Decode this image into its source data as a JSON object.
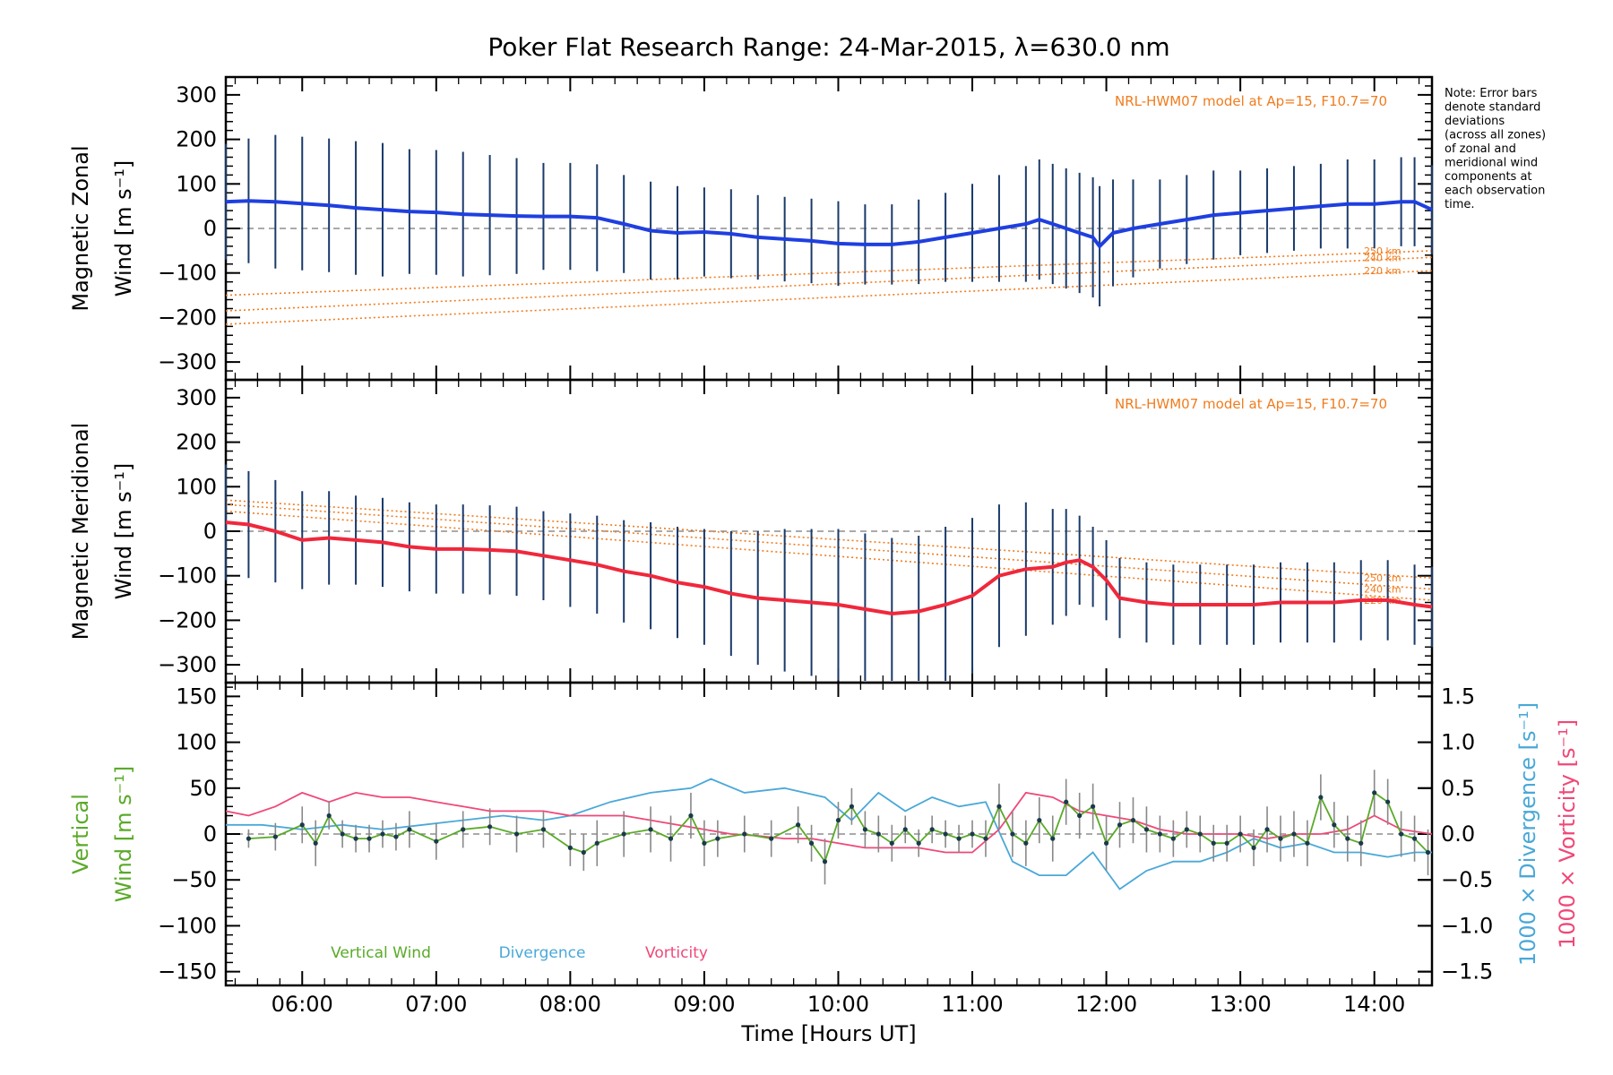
{
  "figure": {
    "title": "Poker Flat Research Range: 24-Mar-2015, λ=630.0 nm",
    "note": [
      "Note: Error bars",
      "denote standard",
      "deviations",
      "(across all zones)",
      "of zonal and",
      "meridional wind",
      "components at",
      "each observation",
      "time."
    ],
    "xlabel": "Time [Hours UT]",
    "xtick_labels": [
      "06:00",
      "07:00",
      "08:00",
      "09:00",
      "10:00",
      "11:00",
      "12:00",
      "13:00",
      "14:00"
    ],
    "colors": {
      "zonal": "#1f3fe0",
      "meridional": "#f0283c",
      "model": "#f07c1e",
      "vertical": "#5aaa28",
      "divergence": "#4aa8d8",
      "vorticity": "#f04878",
      "zone_points": "#8a8ad8",
      "error_bar": "#1a3a6a"
    }
  },
  "chart_data": [
    {
      "type": "line",
      "panel": "zonal",
      "ylabel": [
        "Magnetic Zonal",
        "Wind [m s⁻¹]"
      ],
      "model_label": "NRL-HWM07 model at Ap=15, F10.7=70",
      "xlim": [
        5.43,
        14.43
      ],
      "ylim": [
        -340,
        340
      ],
      "yticks": [
        -300,
        -200,
        -100,
        0,
        100,
        200,
        300
      ],
      "ytick_labels": [
        "−300",
        "−200",
        "−100",
        "0",
        "100",
        "200",
        "300"
      ],
      "series": [
        {
          "role": "zonal-wind",
          "x": [
            5.43,
            5.6,
            5.8,
            6.0,
            6.2,
            6.4,
            6.6,
            6.8,
            7.0,
            7.2,
            7.4,
            7.6,
            7.8,
            8.0,
            8.2,
            8.4,
            8.6,
            8.8,
            9.0,
            9.2,
            9.4,
            9.6,
            9.8,
            10.0,
            10.2,
            10.4,
            10.6,
            10.8,
            11.0,
            11.2,
            11.4,
            11.5,
            11.6,
            11.7,
            11.8,
            11.9,
            11.95,
            12.05,
            12.2,
            12.4,
            12.6,
            12.8,
            13.0,
            13.2,
            13.4,
            13.6,
            13.8,
            14.0,
            14.2,
            14.3,
            14.43
          ],
          "values": [
            60,
            62,
            60,
            56,
            52,
            46,
            42,
            38,
            36,
            32,
            30,
            28,
            27,
            27,
            24,
            10,
            -5,
            -10,
            -8,
            -12,
            -20,
            -24,
            -28,
            -34,
            -36,
            -36,
            -30,
            -20,
            -10,
            0,
            10,
            20,
            10,
            0,
            -10,
            -20,
            -40,
            -10,
            0,
            10,
            20,
            30,
            35,
            40,
            45,
            50,
            55,
            55,
            60,
            60,
            42
          ],
          "error": [
            130,
            140,
            150,
            150,
            150,
            150,
            150,
            140,
            140,
            140,
            135,
            130,
            120,
            120,
            120,
            110,
            110,
            105,
            100,
            100,
            95,
            95,
            95,
            95,
            90,
            90,
            95,
            100,
            110,
            120,
            130,
            135,
            135,
            135,
            135,
            135,
            135,
            120,
            110,
            100,
            100,
            100,
            95,
            95,
            95,
            95,
            100,
            100,
            100,
            100,
            100
          ]
        },
        {
          "role": "model-250km",
          "label": "250 km",
          "x": [
            5.43,
            14.43
          ],
          "values": [
            -150,
            -50
          ]
        },
        {
          "role": "model-240km",
          "label": "240 km",
          "x": [
            5.43,
            14.43
          ],
          "values": [
            -185,
            -65
          ]
        },
        {
          "role": "model-220km",
          "label": "220 km",
          "x": [
            5.43,
            14.43
          ],
          "values": [
            -215,
            -95
          ]
        }
      ]
    },
    {
      "type": "line",
      "panel": "meridional",
      "ylabel": [
        "Magnetic Meridional",
        "Wind [m s⁻¹]"
      ],
      "model_label": "NRL-HWM07 model at Ap=15, F10.7=70",
      "xlim": [
        5.43,
        14.43
      ],
      "ylim": [
        -340,
        340
      ],
      "yticks": [
        -300,
        -200,
        -100,
        0,
        100,
        200,
        300
      ],
      "ytick_labels": [
        "−300",
        "−200",
        "−100",
        "0",
        "100",
        "200",
        "300"
      ],
      "series": [
        {
          "role": "meridional-wind",
          "x": [
            5.43,
            5.6,
            5.8,
            6.0,
            6.2,
            6.4,
            6.6,
            6.8,
            7.0,
            7.2,
            7.4,
            7.6,
            7.8,
            8.0,
            8.2,
            8.4,
            8.6,
            8.8,
            9.0,
            9.2,
            9.4,
            9.6,
            9.8,
            10.0,
            10.2,
            10.4,
            10.6,
            10.8,
            11.0,
            11.2,
            11.4,
            11.6,
            11.7,
            11.8,
            11.9,
            12.0,
            12.1,
            12.3,
            12.5,
            12.7,
            12.9,
            13.1,
            13.3,
            13.5,
            13.7,
            13.9,
            14.1,
            14.3,
            14.43
          ],
          "values": [
            20,
            15,
            0,
            -20,
            -15,
            -20,
            -25,
            -35,
            -40,
            -40,
            -42,
            -45,
            -55,
            -65,
            -75,
            -90,
            -100,
            -115,
            -125,
            -140,
            -150,
            -155,
            -160,
            -165,
            -175,
            -185,
            -180,
            -165,
            -145,
            -100,
            -85,
            -80,
            -70,
            -65,
            -80,
            -110,
            -150,
            -160,
            -165,
            -165,
            -165,
            -165,
            -160,
            -160,
            -160,
            -155,
            -155,
            -165,
            -170
          ],
          "error": [
            130,
            120,
            115,
            110,
            105,
            100,
            100,
            100,
            100,
            100,
            100,
            100,
            100,
            105,
            110,
            115,
            120,
            125,
            130,
            140,
            150,
            160,
            165,
            170,
            170,
            170,
            170,
            175,
            175,
            160,
            150,
            130,
            120,
            100,
            90,
            90,
            90,
            90,
            90,
            90,
            90,
            90,
            90,
            90,
            90,
            90,
            90,
            90,
            90
          ]
        },
        {
          "role": "model-250km",
          "label": "250 km",
          "x": [
            5.43,
            14.43
          ],
          "values": [
            70,
            -105
          ]
        },
        {
          "role": "model-240km",
          "label": "240 km",
          "x": [
            5.43,
            14.43
          ],
          "values": [
            60,
            -130
          ]
        },
        {
          "role": "model-220km",
          "label": "220 km",
          "x": [
            5.43,
            14.43
          ],
          "values": [
            45,
            -155
          ]
        }
      ]
    },
    {
      "type": "line",
      "panel": "vertical",
      "ylabel_left": [
        "Vertical",
        "Wind [m s⁻¹]"
      ],
      "ylabel_right_divergence": "1000 × Divergence [s⁻¹]",
      "ylabel_right_vorticity": "1000 × Vorticity [s⁻¹]",
      "xlim": [
        5.43,
        14.43
      ],
      "ylim": [
        -165,
        165
      ],
      "yticks": [
        -150,
        -100,
        -50,
        0,
        50,
        100,
        150
      ],
      "ytick_labels": [
        "−150",
        "−100",
        "−50",
        "0",
        "50",
        "100",
        "150"
      ],
      "y2lim": [
        -1.65,
        1.65
      ],
      "y2ticks": [
        -1.5,
        -1.0,
        -0.5,
        0.0,
        0.5,
        1.0,
        1.5
      ],
      "y2tick_labels": [
        "−1.5",
        "−1.0",
        "−0.5",
        "0.0",
        "0.5",
        "1.0",
        "1.5"
      ],
      "legend": [
        "Vertical Wind",
        "Divergence",
        "Vorticity"
      ],
      "series": [
        {
          "name": "Vertical Wind",
          "axis": "left",
          "x": [
            5.6,
            5.8,
            6.0,
            6.1,
            6.2,
            6.3,
            6.4,
            6.5,
            6.6,
            6.7,
            6.8,
            7.0,
            7.2,
            7.4,
            7.6,
            7.8,
            8.0,
            8.1,
            8.2,
            8.4,
            8.6,
            8.75,
            8.9,
            9.0,
            9.1,
            9.3,
            9.5,
            9.7,
            9.8,
            9.9,
            10.0,
            10.1,
            10.2,
            10.3,
            10.4,
            10.5,
            10.6,
            10.7,
            10.8,
            10.9,
            11.0,
            11.1,
            11.2,
            11.3,
            11.4,
            11.5,
            11.6,
            11.7,
            11.8,
            11.9,
            12.0,
            12.1,
            12.2,
            12.3,
            12.4,
            12.5,
            12.6,
            12.7,
            12.8,
            12.9,
            13.0,
            13.1,
            13.2,
            13.3,
            13.4,
            13.5,
            13.6,
            13.7,
            13.8,
            13.9,
            14.0,
            14.1,
            14.2,
            14.3,
            14.4
          ],
          "values": [
            -5,
            -3,
            10,
            -10,
            20,
            0,
            -5,
            -5,
            0,
            -3,
            5,
            -8,
            5,
            8,
            0,
            5,
            -15,
            -20,
            -10,
            0,
            5,
            -5,
            20,
            -10,
            -5,
            0,
            -5,
            10,
            -10,
            -30,
            15,
            30,
            5,
            0,
            -10,
            5,
            -10,
            5,
            0,
            -5,
            0,
            -5,
            30,
            0,
            -10,
            15,
            -5,
            35,
            20,
            30,
            -10,
            10,
            15,
            5,
            0,
            -5,
            5,
            0,
            -10,
            -10,
            0,
            -15,
            5,
            -5,
            0,
            -10,
            40,
            10,
            -5,
            -10,
            45,
            35,
            0,
            -5,
            -20
          ],
          "error": [
            10,
            15,
            20,
            25,
            15,
            15,
            15,
            15,
            15,
            15,
            20,
            20,
            20,
            20,
            20,
            20,
            20,
            20,
            25,
            25,
            25,
            25,
            25,
            25,
            20,
            20,
            20,
            20,
            20,
            25,
            20,
            20,
            20,
            20,
            20,
            15,
            15,
            15,
            15,
            15,
            15,
            20,
            25,
            25,
            25,
            25,
            25,
            25,
            25,
            25,
            30,
            25,
            25,
            25,
            20,
            20,
            20,
            20,
            20,
            20,
            20,
            20,
            25,
            25,
            25,
            25,
            25,
            25,
            25,
            25,
            25,
            25,
            25,
            25,
            25
          ]
        },
        {
          "name": "Divergence",
          "axis": "right",
          "x": [
            5.43,
            5.7,
            6.0,
            6.3,
            6.6,
            6.9,
            7.2,
            7.5,
            7.8,
            8.0,
            8.3,
            8.6,
            8.9,
            9.05,
            9.3,
            9.6,
            9.9,
            10.1,
            10.3,
            10.5,
            10.7,
            10.9,
            11.1,
            11.3,
            11.5,
            11.7,
            11.9,
            12.1,
            12.3,
            12.5,
            12.7,
            12.9,
            13.1,
            13.3,
            13.5,
            13.7,
            13.9,
            14.1,
            14.3,
            14.43
          ],
          "values": [
            0.1,
            0.1,
            0.05,
            0.1,
            0.05,
            0.1,
            0.15,
            0.2,
            0.15,
            0.2,
            0.35,
            0.45,
            0.5,
            0.6,
            0.45,
            0.5,
            0.4,
            0.15,
            0.45,
            0.25,
            0.4,
            0.3,
            0.35,
            -0.3,
            -0.45,
            -0.45,
            -0.2,
            -0.6,
            -0.4,
            -0.3,
            -0.3,
            -0.2,
            -0.05,
            -0.15,
            -0.1,
            -0.2,
            -0.2,
            -0.25,
            -0.2,
            -0.2
          ]
        },
        {
          "name": "Vorticity",
          "axis": "right",
          "x": [
            5.43,
            5.6,
            5.8,
            6.0,
            6.2,
            6.4,
            6.6,
            6.8,
            7.0,
            7.2,
            7.4,
            7.6,
            7.8,
            8.0,
            8.2,
            8.4,
            8.6,
            8.8,
            9.0,
            9.2,
            9.4,
            9.6,
            9.8,
            10.0,
            10.2,
            10.4,
            10.6,
            10.8,
            11.0,
            11.2,
            11.4,
            11.6,
            11.8,
            12.0,
            12.2,
            12.4,
            12.6,
            12.8,
            13.0,
            13.2,
            13.4,
            13.6,
            13.8,
            14.0,
            14.2,
            14.43
          ],
          "values": [
            0.25,
            0.2,
            0.3,
            0.45,
            0.35,
            0.45,
            0.4,
            0.4,
            0.35,
            0.3,
            0.25,
            0.25,
            0.25,
            0.2,
            0.2,
            0.2,
            0.15,
            0.1,
            0.05,
            0.0,
            -0.02,
            -0.05,
            -0.05,
            -0.1,
            -0.15,
            -0.15,
            -0.15,
            -0.2,
            -0.2,
            0.05,
            0.45,
            0.4,
            0.25,
            0.2,
            0.15,
            0.05,
            0.0,
            0.0,
            0.0,
            -0.05,
            0.0,
            0.0,
            0.05,
            0.2,
            0.05,
            0.0
          ]
        }
      ]
    }
  ]
}
